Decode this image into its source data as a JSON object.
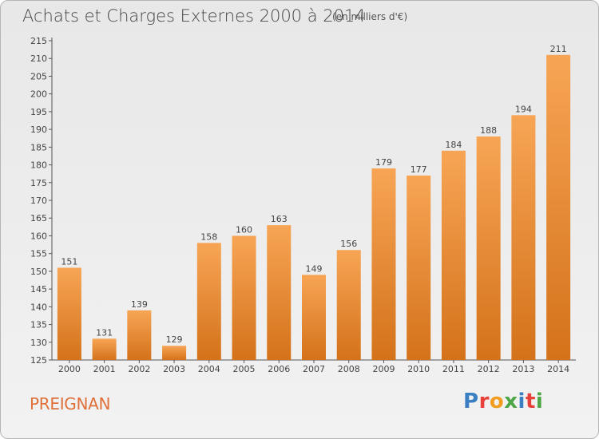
{
  "title": "Achats et Charges Externes 2000 à 2014",
  "subtitle": "(en milliers d'€)",
  "place": "PREIGNAN",
  "logo": {
    "text": "Proxiti",
    "colors": [
      "#3a7fc1",
      "#e8413a",
      "#f29d1f",
      "#4ca645",
      "#3a7fc1",
      "#e8413a",
      "#4ca645"
    ]
  },
  "colors": {
    "bar_top": "#f7a555",
    "bar_bottom": "#d4721a",
    "text": "#444444",
    "place": "#e0703a"
  },
  "chart_data": {
    "type": "bar",
    "title": "Achats et Charges Externes 2000 à 2014",
    "subtitle": "(en milliers d'€)",
    "categories": [
      "2000",
      "2001",
      "2002",
      "2003",
      "2004",
      "2005",
      "2006",
      "2007",
      "2008",
      "2009",
      "2010",
      "2011",
      "2012",
      "2013",
      "2014"
    ],
    "values": [
      151,
      131,
      139,
      129,
      158,
      160,
      163,
      149,
      156,
      179,
      177,
      184,
      188,
      194,
      211
    ],
    "ylim": [
      125,
      215
    ],
    "yticks": [
      125,
      130,
      135,
      140,
      145,
      150,
      155,
      160,
      165,
      170,
      175,
      180,
      185,
      190,
      195,
      200,
      205,
      210,
      215
    ],
    "grid": false,
    "data_labels": true
  }
}
